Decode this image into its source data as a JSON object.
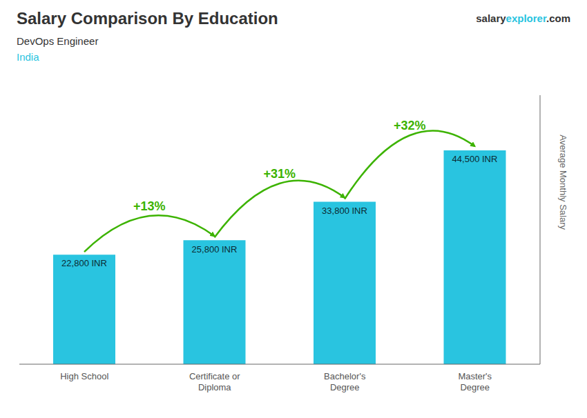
{
  "chart_data": {
    "type": "bar",
    "title": "Salary Comparison By Education",
    "subtitle": "DevOps Engineer",
    "annotations": {
      "country": "India",
      "logo": [
        "salary",
        "explorer",
        ".com"
      ],
      "changes": [
        "+13%",
        "+31%",
        "+32%"
      ]
    },
    "categories": [
      "High School",
      "Certificate or\nDiploma",
      "Bachelor's\nDegree",
      "Master's\nDegree"
    ],
    "values": [
      22800,
      25800,
      33800,
      44500
    ],
    "value_labels": [
      "22,800 INR",
      "25,800 INR",
      "33,800 INR",
      "44,500 INR"
    ],
    "data_labels": true,
    "color": "#29c4e0",
    "ylabel": "Average Monthly Salary",
    "ylim": [
      0,
      56000
    ],
    "tick_labels": "x",
    "grid": false
  }
}
